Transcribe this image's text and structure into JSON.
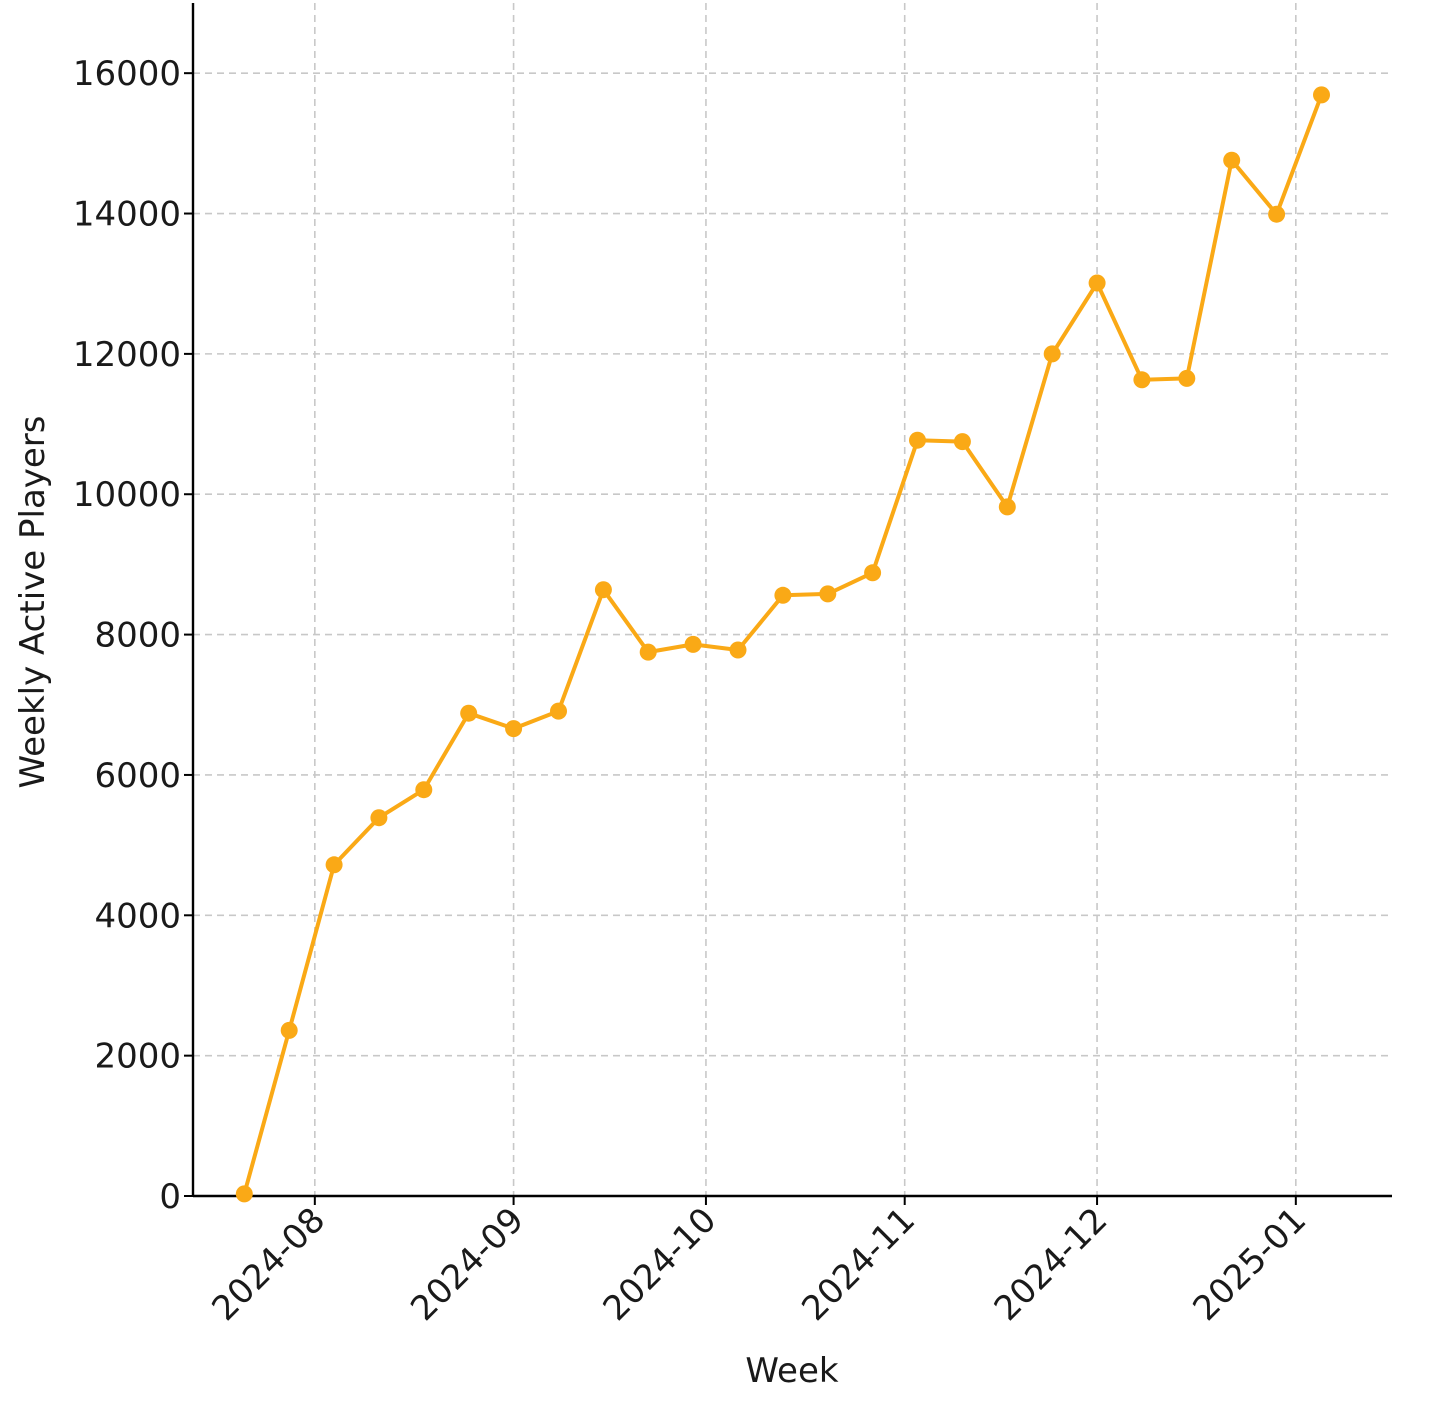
{
  "chart_data": {
    "type": "line",
    "title": "",
    "xlabel": "Week",
    "ylabel": "Weekly Active Players",
    "x_type": "date",
    "xlim": [
      "2024-07-13",
      "2025-01-16"
    ],
    "ylim": [
      0,
      17000
    ],
    "x_ticks": [
      "2024-08-01",
      "2024-09-01",
      "2024-10-01",
      "2024-11-01",
      "2024-12-01",
      "2025-01-01"
    ],
    "x_tick_labels": [
      "2024-08",
      "2024-09",
      "2024-10",
      "2024-11",
      "2024-12",
      "2025-01"
    ],
    "y_ticks": [
      0,
      2000,
      4000,
      6000,
      8000,
      10000,
      12000,
      14000,
      16000
    ],
    "y_tick_labels": [
      "0",
      "2000",
      "4000",
      "6000",
      "8000",
      "10000",
      "12000",
      "14000",
      "16000"
    ],
    "grid": true,
    "series": [
      {
        "color": "#FAA916",
        "marker": "circle",
        "x": [
          "2024-07-21",
          "2024-07-28",
          "2024-08-04",
          "2024-08-11",
          "2024-08-18",
          "2024-08-25",
          "2024-09-01",
          "2024-09-08",
          "2024-09-15",
          "2024-09-22",
          "2024-09-29",
          "2024-10-06",
          "2024-10-13",
          "2024-10-20",
          "2024-10-27",
          "2024-11-03",
          "2024-11-10",
          "2024-11-17",
          "2024-11-24",
          "2024-12-01",
          "2024-12-08",
          "2024-12-15",
          "2024-12-22",
          "2024-12-29",
          "2025-01-05"
        ],
        "values": [
          30,
          2360,
          4720,
          5390,
          5790,
          6880,
          6660,
          6910,
          8640,
          7750,
          7860,
          7780,
          8560,
          8580,
          8880,
          10770,
          10750,
          9820,
          12000,
          13010,
          11630,
          11650,
          14760,
          13990,
          15690
        ]
      }
    ]
  }
}
